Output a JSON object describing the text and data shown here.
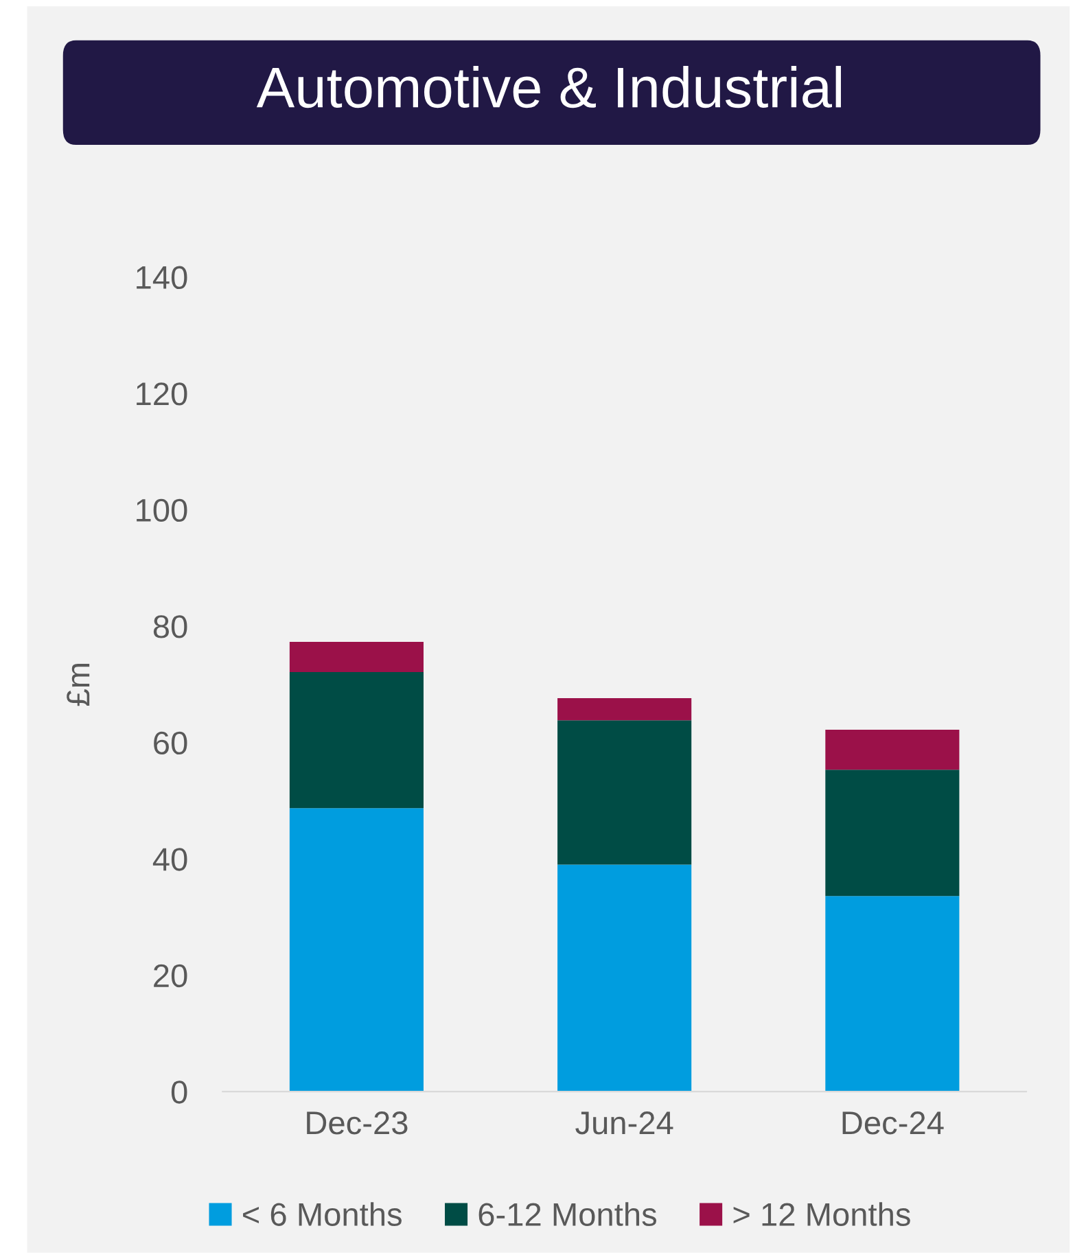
{
  "chart_data": {
    "type": "bar",
    "title": "Automotive & Industrial",
    "ylabel": "£m",
    "stacked": true,
    "categories": [
      "Dec-23",
      "Jun-24",
      "Dec-24"
    ],
    "series": [
      {
        "name": "< 6 Months",
        "color": "#009ddf",
        "values": [
          48.7,
          39.0,
          33.6
        ]
      },
      {
        "name": "6-12 Months",
        "color": "#004c45",
        "values": [
          23.4,
          24.8,
          21.7
        ]
      },
      {
        "name": "> 12 Months",
        "color": "#9b1149",
        "values": [
          5.2,
          3.8,
          6.9
        ]
      }
    ],
    "ylim": [
      0,
      140
    ],
    "yticks": [
      0,
      20,
      40,
      60,
      80,
      100,
      120,
      140
    ],
    "grid": false,
    "legend": "bottom"
  }
}
